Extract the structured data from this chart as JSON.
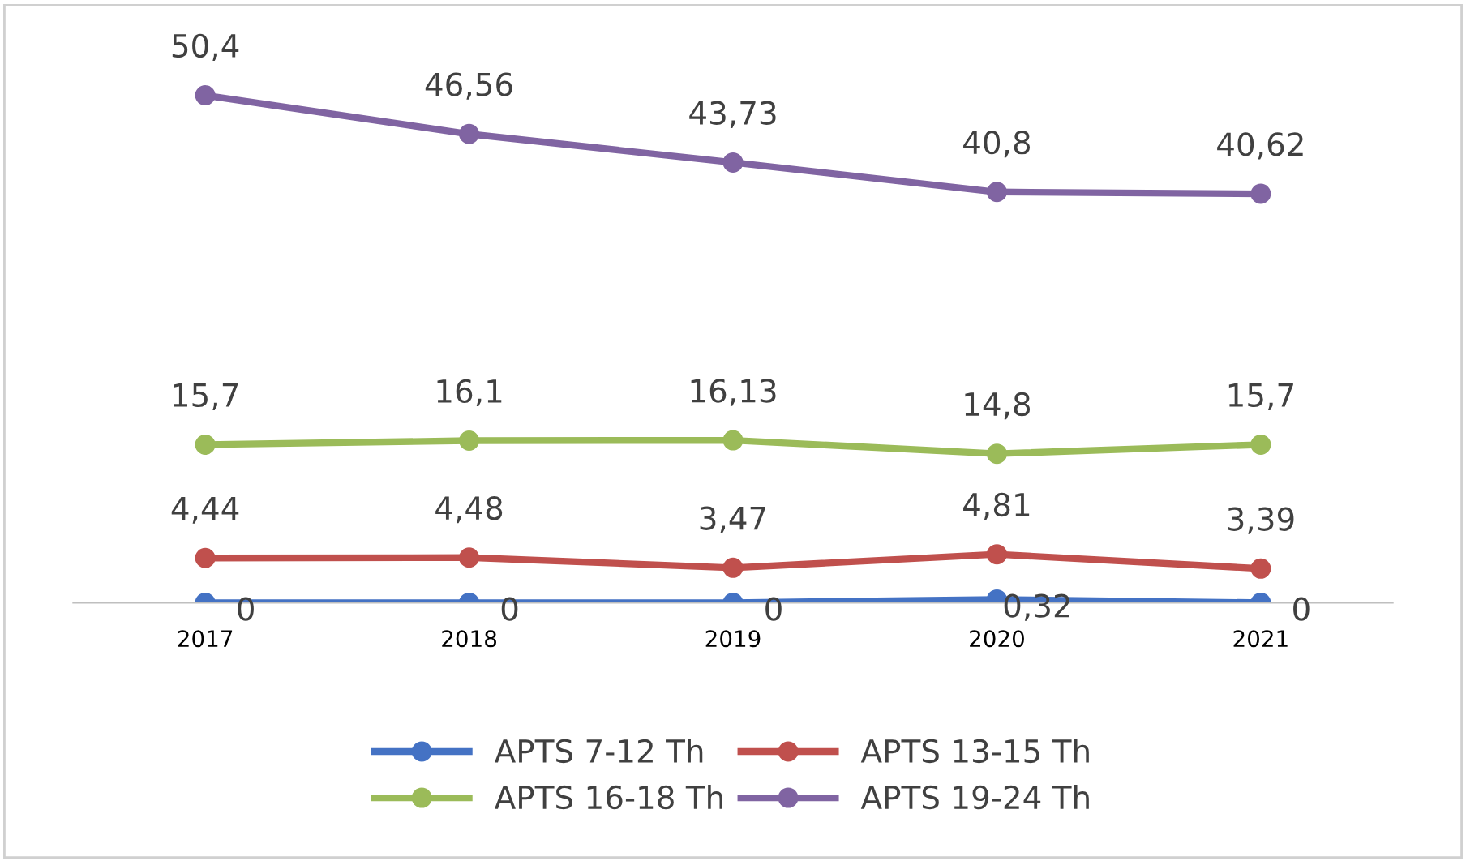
{
  "chart_data": {
    "type": "line",
    "categories": [
      "2017",
      "2018",
      "2019",
      "2020",
      "2021"
    ],
    "marker": "circle",
    "line_style": "solid",
    "legend": "bottom",
    "grid": false,
    "tick_labels": "x",
    "series": [
      {
        "name": "APTS 7-12 Th",
        "color": "#4472c4",
        "values": [
          0,
          0,
          0,
          0.32,
          0
        ],
        "value_labels": [
          "0",
          "0",
          "0",
          "0,32",
          "0"
        ]
      },
      {
        "name": "APTS 13-15 Th",
        "color": "#c0504d",
        "values": [
          4.44,
          4.48,
          3.47,
          4.81,
          3.39
        ],
        "value_labels": [
          "4,44",
          "4,48",
          "3,47",
          "4,81",
          "3,39"
        ]
      },
      {
        "name": "APTS 16-18 Th",
        "color": "#9bbb59",
        "values": [
          15.7,
          16.1,
          16.13,
          14.8,
          15.7
        ],
        "value_labels": [
          "15,7",
          "16,1",
          "16,13",
          "14,8",
          "15,7"
        ]
      },
      {
        "name": "APTS 19-24 Th",
        "color": "#8064a2",
        "values": [
          50.4,
          46.56,
          43.73,
          40.8,
          40.62
        ],
        "value_labels": [
          "50,4",
          "46,56",
          "43,73",
          "40,8",
          "40,62"
        ]
      }
    ]
  }
}
